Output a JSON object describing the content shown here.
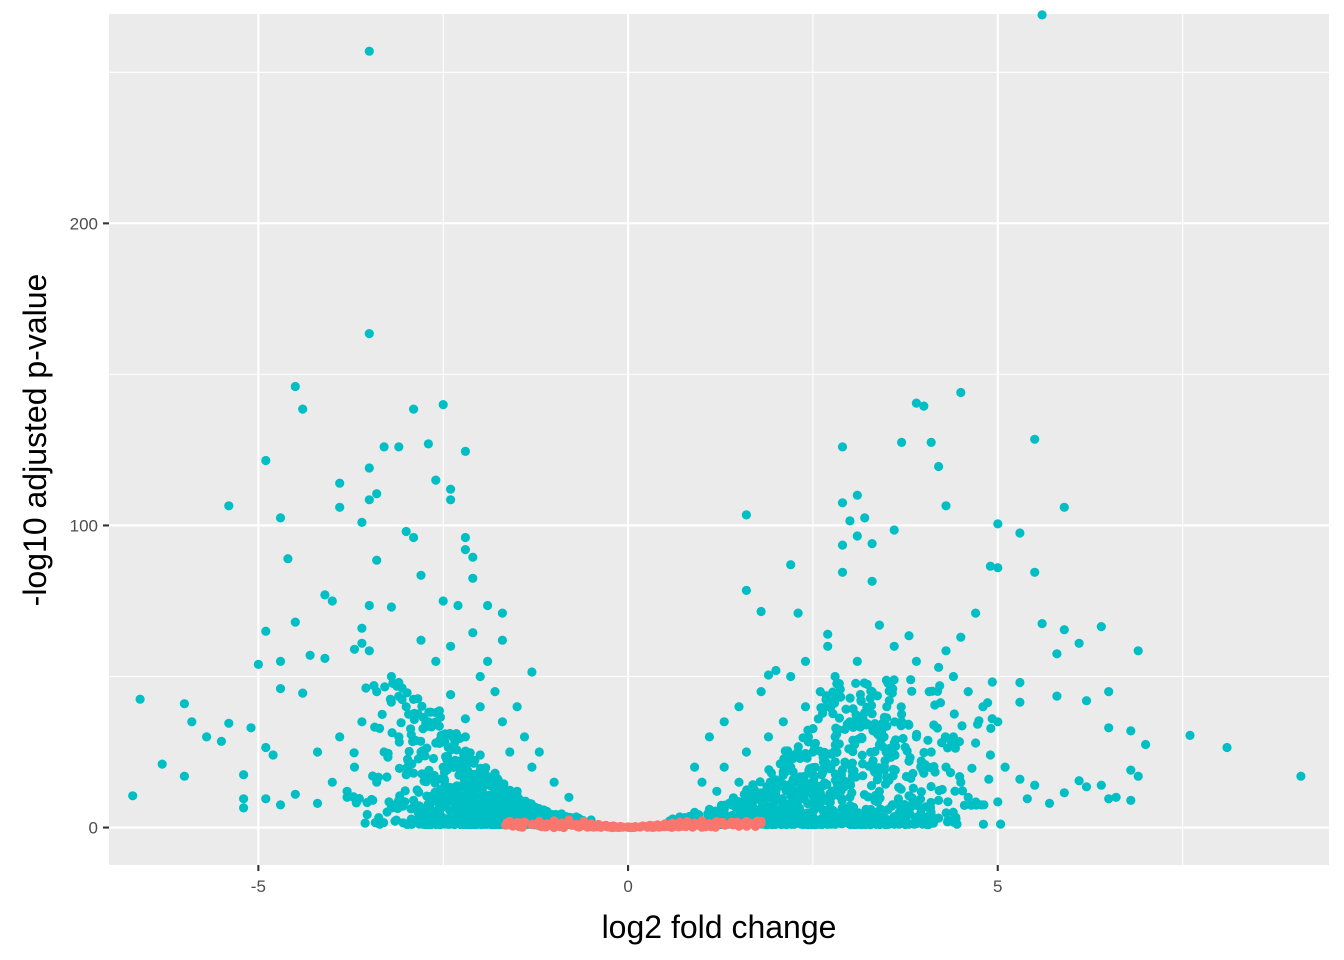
{
  "chart_data": {
    "type": "scatter",
    "title": "",
    "xlabel": "log2 fold change",
    "ylabel": "-log10 adjusted p-value",
    "xlim": [
      -7.02,
      9.48
    ],
    "ylim": [
      -12.4,
      269.3
    ],
    "x_ticks": [
      -5,
      0,
      5
    ],
    "y_ticks": [
      0,
      100,
      200
    ],
    "grid": true,
    "legend": "none",
    "colors": {
      "significant": "#00BFC4",
      "not_significant": "#F8766D",
      "panel_background": "#EBEBEB"
    },
    "series": [
      {
        "color": "#00BFC4",
        "points": [
          [
            5.6,
            269.0
          ],
          [
            -3.5,
            257.0
          ],
          [
            -3.5,
            163.5
          ],
          [
            -4.5,
            146.0
          ],
          [
            -4.4,
            138.5
          ],
          [
            4.5,
            144.0
          ],
          [
            3.9,
            140.5
          ],
          [
            4.0,
            139.5
          ],
          [
            -2.5,
            140.0
          ],
          [
            -2.9,
            138.5
          ],
          [
            5.5,
            128.5
          ],
          [
            3.7,
            127.5
          ],
          [
            4.1,
            127.5
          ],
          [
            -2.7,
            127.0
          ],
          [
            -3.3,
            126.0
          ],
          [
            -3.1,
            126.0
          ],
          [
            2.9,
            126.0
          ],
          [
            -2.2,
            124.5
          ],
          [
            -4.9,
            121.5
          ],
          [
            4.2,
            119.5
          ],
          [
            -3.5,
            119.0
          ],
          [
            -2.6,
            115.0
          ],
          [
            -3.9,
            114.0
          ],
          [
            -2.4,
            112.0
          ],
          [
            3.1,
            110.0
          ],
          [
            -3.4,
            110.5
          ],
          [
            -3.5,
            108.5
          ],
          [
            -2.4,
            108.5
          ],
          [
            2.9,
            107.5
          ],
          [
            -5.4,
            106.5
          ],
          [
            -3.9,
            106.0
          ],
          [
            4.3,
            106.5
          ],
          [
            5.9,
            106.0
          ],
          [
            1.6,
            103.5
          ],
          [
            -4.7,
            102.5
          ],
          [
            3.2,
            102.5
          ],
          [
            3.0,
            101.5
          ],
          [
            -3.6,
            101.0
          ],
          [
            5.0,
            100.5
          ],
          [
            3.6,
            98.5
          ],
          [
            -3.0,
            98.0
          ],
          [
            5.3,
            97.5
          ],
          [
            -2.9,
            96.0
          ],
          [
            -2.2,
            96.0
          ],
          [
            3.1,
            96.5
          ],
          [
            3.3,
            94.0
          ],
          [
            2.9,
            93.5
          ],
          [
            -2.2,
            92.0
          ],
          [
            -2.1,
            89.5
          ],
          [
            -4.6,
            89.0
          ],
          [
            -3.4,
            88.5
          ],
          [
            2.2,
            87.0
          ],
          [
            5.5,
            84.5
          ],
          [
            4.9,
            86.5
          ],
          [
            5.0,
            86.0
          ],
          [
            -2.8,
            83.5
          ],
          [
            -2.1,
            82.5
          ],
          [
            2.9,
            84.5
          ],
          [
            3.3,
            81.5
          ],
          [
            1.6,
            78.5
          ],
          [
            -4.1,
            77.0
          ],
          [
            -4.0,
            75.0
          ],
          [
            -2.5,
            75.0
          ],
          [
            -2.3,
            73.5
          ],
          [
            -1.9,
            73.5
          ],
          [
            -3.5,
            73.5
          ],
          [
            -3.2,
            73.0
          ],
          [
            -1.7,
            71.0
          ],
          [
            1.8,
            71.5
          ],
          [
            2.3,
            71.0
          ],
          [
            4.7,
            71.0
          ],
          [
            -4.5,
            68.0
          ],
          [
            -3.6,
            66.0
          ],
          [
            5.6,
            67.5
          ],
          [
            3.4,
            67.0
          ],
          [
            6.4,
            66.5
          ],
          [
            5.9,
            65.5
          ],
          [
            -4.9,
            65.0
          ],
          [
            -2.1,
            64.5
          ],
          [
            2.7,
            64.0
          ],
          [
            3.8,
            63.5
          ],
          [
            4.5,
            63.0
          ],
          [
            -1.7,
            62.0
          ],
          [
            -3.6,
            61.0
          ],
          [
            -3.7,
            59.0
          ],
          [
            -3.5,
            58.5
          ],
          [
            4.3,
            58.5
          ],
          [
            6.1,
            61.0
          ],
          [
            6.9,
            58.5
          ],
          [
            5.8,
            57.5
          ],
          [
            -4.3,
            57.0
          ],
          [
            -4.1,
            56.0
          ],
          [
            -4.7,
            55.0
          ],
          [
            -5.0,
            54.0
          ],
          [
            4.2,
            53.0
          ],
          [
            2.0,
            52.0
          ],
          [
            -1.3,
            51.5
          ],
          [
            1.9,
            50.5
          ],
          [
            5.3,
            48.0
          ],
          [
            6.5,
            45.0
          ],
          [
            -3.1,
            48.0
          ],
          [
            -4.7,
            46.0
          ],
          [
            -4.4,
            44.5
          ],
          [
            -6.6,
            42.5
          ],
          [
            -6.0,
            41.0
          ],
          [
            -5.4,
            34.5
          ],
          [
            -5.9,
            35.0
          ],
          [
            -5.7,
            30.0
          ],
          [
            -4.9,
            26.5
          ],
          [
            -4.8,
            24.0
          ],
          [
            -5.1,
            33.0
          ],
          [
            -5.5,
            28.5
          ],
          [
            6.2,
            42.0
          ],
          [
            5.8,
            43.5
          ],
          [
            5.3,
            41.5
          ],
          [
            6.5,
            33.0
          ],
          [
            6.8,
            32.0
          ],
          [
            7.0,
            27.5
          ],
          [
            7.6,
            30.5
          ],
          [
            8.1,
            26.5
          ],
          [
            9.1,
            17.0
          ],
          [
            6.8,
            19.0
          ],
          [
            6.9,
            17.0
          ],
          [
            6.4,
            14.0
          ],
          [
            6.1,
            15.5
          ],
          [
            6.5,
            9.5
          ],
          [
            6.8,
            9.0
          ],
          [
            6.6,
            10.0
          ],
          [
            6.2,
            13.5
          ],
          [
            5.9,
            11.5
          ],
          [
            -6.3,
            21.0
          ],
          [
            -6.0,
            17.0
          ],
          [
            -6.7,
            10.5
          ],
          [
            -5.2,
            17.5
          ],
          [
            -5.2,
            9.5
          ],
          [
            -5.2,
            6.5
          ],
          [
            -4.9,
            9.5
          ],
          [
            -4.7,
            7.5
          ],
          [
            -4.5,
            11.0
          ],
          [
            -4.2,
            8.0
          ],
          [
            -3.8,
            10.0
          ],
          [
            -3.2,
            7.5
          ],
          [
            -2.9,
            9.0
          ],
          [
            -2.5,
            8.5
          ],
          [
            -2.2,
            9.5
          ],
          [
            -1.9,
            8.5
          ],
          [
            -1.5,
            7.0
          ],
          [
            -1.2,
            5.5
          ],
          [
            -0.9,
            4.5
          ],
          [
            -0.7,
            3.5
          ],
          [
            -0.5,
            2.5
          ],
          [
            0.7,
            3.5
          ],
          [
            0.9,
            5.0
          ],
          [
            1.1,
            6.0
          ],
          [
            1.4,
            7.5
          ],
          [
            1.8,
            9.0
          ],
          [
            2.2,
            10.5
          ],
          [
            2.6,
            11.5
          ],
          [
            3.0,
            10.0
          ],
          [
            3.4,
            12.0
          ],
          [
            3.8,
            10.5
          ],
          [
            4.2,
            9.0
          ],
          [
            4.6,
            10.0
          ],
          [
            5.0,
            8.5
          ],
          [
            5.4,
            9.5
          ],
          [
            5.7,
            8.0
          ],
          [
            -1.8,
            45.0
          ],
          [
            -1.5,
            40.0
          ],
          [
            -2.0,
            50.0
          ],
          [
            -1.9,
            55.0
          ],
          [
            -2.4,
            60.0
          ],
          [
            -2.6,
            55.0
          ],
          [
            -2.8,
            62.0
          ],
          [
            -3.2,
            50.0
          ],
          [
            -3.4,
            45.0
          ],
          [
            -3.0,
            40.0
          ],
          [
            -2.7,
            35.0
          ],
          [
            -2.2,
            30.0
          ],
          [
            -1.6,
            25.0
          ],
          [
            -1.3,
            20.0
          ],
          [
            -1.0,
            15.0
          ],
          [
            -0.8,
            10.0
          ],
          [
            -3.6,
            35.0
          ],
          [
            -3.9,
            30.0
          ],
          [
            -4.2,
            25.0
          ],
          [
            -3.7,
            20.0
          ],
          [
            -4.0,
            15.0
          ],
          [
            -3.3,
            25.0
          ],
          [
            -2.5,
            20.0
          ],
          [
            -2.1,
            15.0
          ],
          [
            -2.8,
            25.0
          ],
          [
            -3.1,
            30.0
          ],
          [
            -2.0,
            40.0
          ],
          [
            -1.7,
            35.0
          ],
          [
            -1.4,
            30.0
          ],
          [
            -1.2,
            25.0
          ],
          [
            1.0,
            15.0
          ],
          [
            1.3,
            20.0
          ],
          [
            1.6,
            25.0
          ],
          [
            1.9,
            30.0
          ],
          [
            2.1,
            35.0
          ],
          [
            2.4,
            40.0
          ],
          [
            2.6,
            45.0
          ],
          [
            2.8,
            50.0
          ],
          [
            3.1,
            55.0
          ],
          [
            3.3,
            45.0
          ],
          [
            3.5,
            40.0
          ],
          [
            3.7,
            35.0
          ],
          [
            3.9,
            30.0
          ],
          [
            4.1,
            25.0
          ],
          [
            4.3,
            20.0
          ],
          [
            4.5,
            15.0
          ],
          [
            2.2,
            20.0
          ],
          [
            2.5,
            25.0
          ],
          [
            2.8,
            30.0
          ],
          [
            3.0,
            35.0
          ],
          [
            3.2,
            38.0
          ],
          [
            3.4,
            32.0
          ],
          [
            3.6,
            28.0
          ],
          [
            3.8,
            22.0
          ],
          [
            4.0,
            18.0
          ],
          [
            4.4,
            30.0
          ],
          [
            4.7,
            28.0
          ],
          [
            4.9,
            24.0
          ],
          [
            5.1,
            20.0
          ],
          [
            5.3,
            16.0
          ],
          [
            5.5,
            14.0
          ],
          [
            4.8,
            40.0
          ],
          [
            5.0,
            35.0
          ],
          [
            4.6,
            45.0
          ],
          [
            4.4,
            50.0
          ],
          [
            3.9,
            55.0
          ],
          [
            3.6,
            60.0
          ],
          [
            2.7,
            60.0
          ],
          [
            2.4,
            55.0
          ],
          [
            2.2,
            50.0
          ],
          [
            1.8,
            45.0
          ],
          [
            1.5,
            40.0
          ],
          [
            1.3,
            35.0
          ],
          [
            1.1,
            30.0
          ],
          [
            0.9,
            20.0
          ],
          [
            1.2,
            12.0
          ],
          [
            1.5,
            15.0
          ],
          [
            2.0,
            12.0
          ],
          [
            2.5,
            14.0
          ],
          [
            -2.3,
            22.0
          ],
          [
            -2.6,
            28.0
          ],
          [
            -2.9,
            18.0
          ],
          [
            -3.4,
            15.0
          ],
          [
            -3.8,
            12.0
          ],
          [
            -1.5,
            12.0
          ],
          [
            -1.8,
            18.0
          ],
          [
            -2.0,
            24.0
          ],
          [
            -2.2,
            36.0
          ],
          [
            -2.4,
            44.0
          ]
        ]
      },
      {
        "color": "#F8766D",
        "points": [
          [
            -1.6,
            1.5
          ],
          [
            -1.5,
            0.8
          ],
          [
            -1.4,
            1.8
          ],
          [
            -1.3,
            1.0
          ],
          [
            -1.2,
            2.0
          ],
          [
            -1.1,
            1.2
          ],
          [
            -1.0,
            2.2
          ],
          [
            -0.9,
            1.5
          ],
          [
            -0.8,
            2.5
          ],
          [
            -0.7,
            1.0
          ],
          [
            -0.6,
            2.0
          ],
          [
            -0.5,
            1.3
          ],
          [
            -0.4,
            1.0
          ],
          [
            -0.3,
            0.7
          ],
          [
            -0.2,
            0.5
          ],
          [
            -0.1,
            0.3
          ],
          [
            0.0,
            0.2
          ],
          [
            0.1,
            0.3
          ],
          [
            0.2,
            0.5
          ],
          [
            0.3,
            0.7
          ],
          [
            0.4,
            0.9
          ],
          [
            0.5,
            1.2
          ],
          [
            0.6,
            1.5
          ],
          [
            0.7,
            1.8
          ],
          [
            0.8,
            2.0
          ],
          [
            0.9,
            1.5
          ],
          [
            1.0,
            2.2
          ],
          [
            1.1,
            1.3
          ],
          [
            1.2,
            2.0
          ],
          [
            1.3,
            1.0
          ],
          [
            1.4,
            1.8
          ],
          [
            1.5,
            1.2
          ],
          [
            1.6,
            1.6
          ],
          [
            1.7,
            1.0
          ],
          [
            1.8,
            1.4
          ],
          [
            -1.0,
            0.5
          ],
          [
            -0.5,
            0.3
          ],
          [
            0.5,
            0.3
          ],
          [
            1.0,
            0.5
          ],
          [
            1.5,
            0.4
          ]
        ]
      }
    ]
  }
}
